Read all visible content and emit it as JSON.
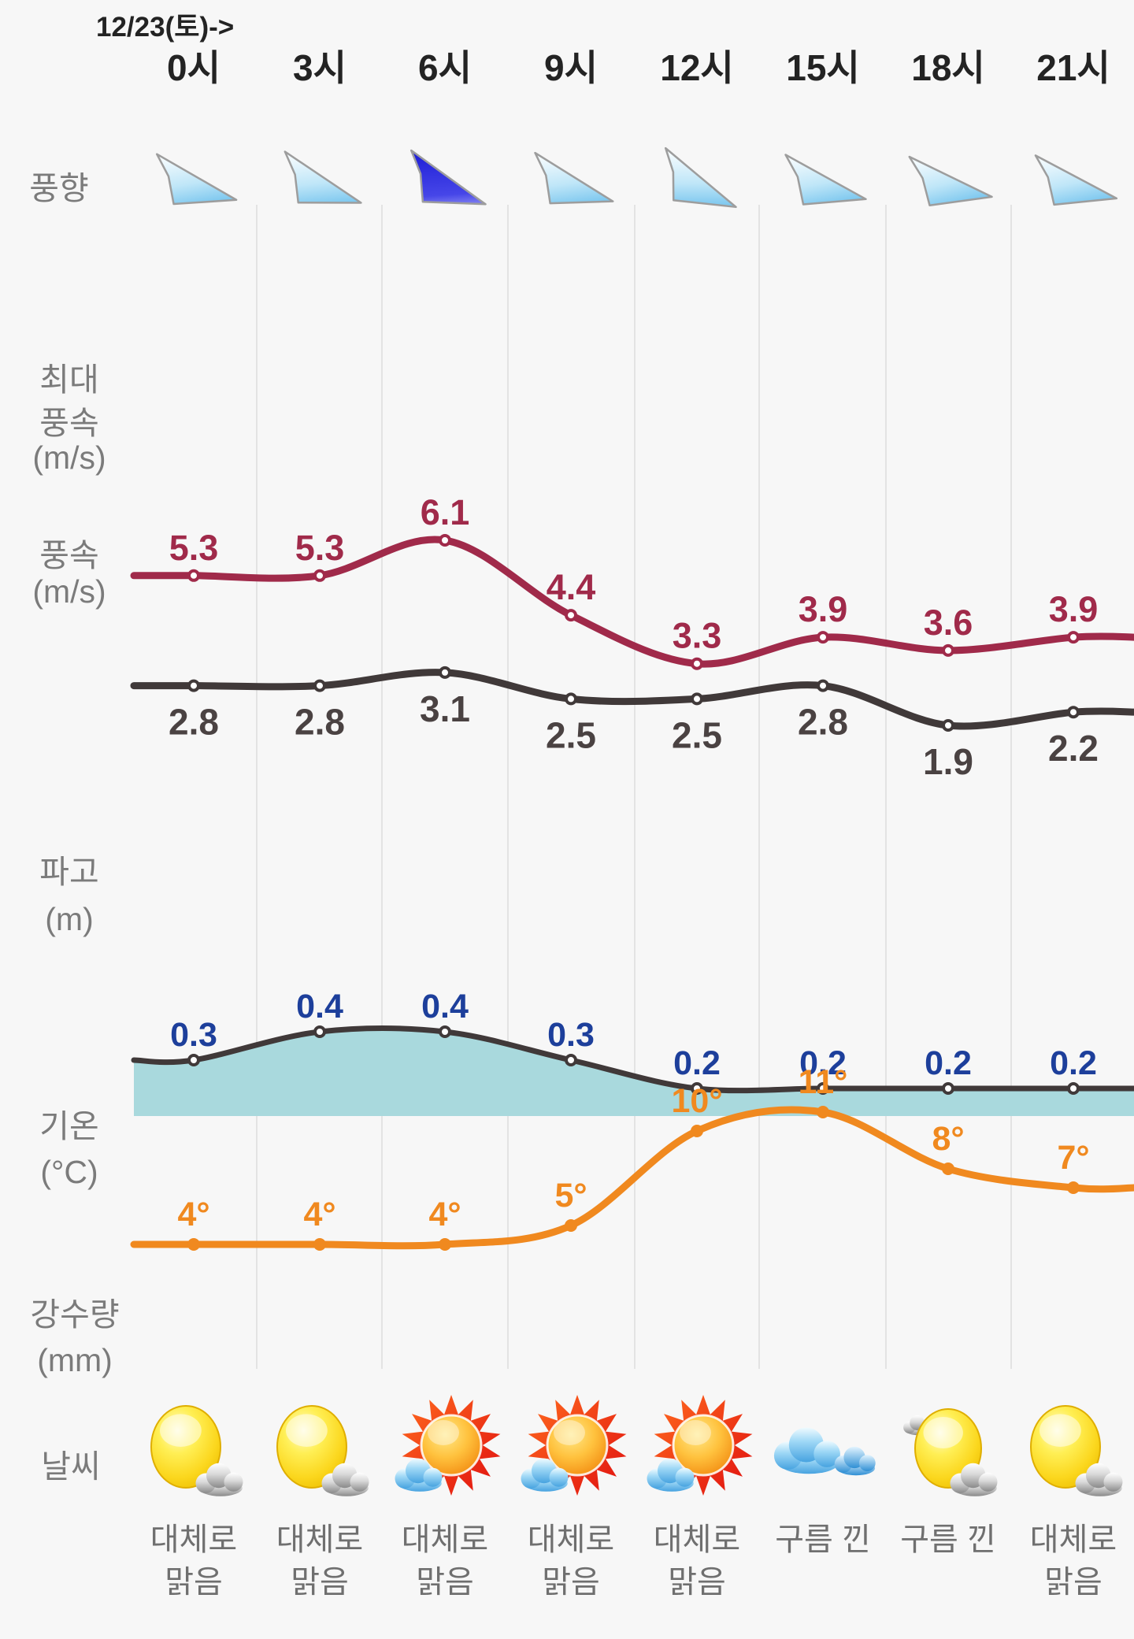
{
  "header": {
    "date_label": "12/23(토)->",
    "times": [
      "0시",
      "3시",
      "6시",
      "9시",
      "12시",
      "15시",
      "18시",
      "21시"
    ]
  },
  "rows": {
    "wind_direction_label": "풍향",
    "max_wind_label_lines": [
      "최대",
      "풍속",
      "(m/s)"
    ],
    "wind_label_lines": [
      "풍속",
      "(m/s)"
    ],
    "wave_label_lines": [
      "파고",
      "(m)"
    ],
    "temp_label_lines": [
      "기온",
      "(°C)"
    ],
    "precip_label_lines": [
      "강수량",
      "(mm)"
    ],
    "weather_label": "날씨"
  },
  "wind_direction": {
    "arrows": [
      {
        "rot": 16,
        "strength": "normal"
      },
      {
        "rot": 20,
        "strength": "normal"
      },
      {
        "rot": 22,
        "strength": "strong"
      },
      {
        "rot": 18,
        "strength": "normal"
      },
      {
        "rot": 26,
        "strength": "normal"
      },
      {
        "rot": 15,
        "strength": "normal"
      },
      {
        "rot": 12,
        "strength": "normal"
      },
      {
        "rot": 14,
        "strength": "normal"
      }
    ]
  },
  "chart_data": [
    {
      "type": "line",
      "name": "max_wind_speed",
      "title": "최대 풍속 (m/s)",
      "categories": [
        "0시",
        "3시",
        "6시",
        "9시",
        "12시",
        "15시",
        "18시",
        "21시"
      ],
      "values": [
        5.3,
        5.3,
        6.1,
        4.4,
        3.3,
        3.9,
        3.6,
        3.9
      ],
      "color": "#a02a4a",
      "label_color": "#a02a4a",
      "marker": "open-circle"
    },
    {
      "type": "line",
      "name": "wind_speed",
      "title": "풍속 (m/s)",
      "categories": [
        "0시",
        "3시",
        "6시",
        "9시",
        "12시",
        "15시",
        "18시",
        "21시"
      ],
      "values": [
        2.8,
        2.8,
        3.1,
        2.5,
        2.5,
        2.8,
        1.9,
        2.2
      ],
      "color": "#403939",
      "label_color": "#4a4242",
      "marker": "open-circle"
    },
    {
      "type": "area",
      "name": "wave_height",
      "title": "파고 (m)",
      "categories": [
        "0시",
        "3시",
        "6시",
        "9시",
        "12시",
        "15시",
        "18시",
        "21시"
      ],
      "values": [
        0.3,
        0.4,
        0.4,
        0.3,
        0.2,
        0.2,
        0.2,
        0.2
      ],
      "color": "#403939",
      "fill": "#a9d9dd",
      "label_color": "#1d3f9b",
      "marker": "open-circle"
    },
    {
      "type": "line",
      "name": "temperature",
      "title": "기온 (°C)",
      "categories": [
        "0시",
        "3시",
        "6시",
        "9시",
        "12시",
        "15시",
        "18시",
        "21시"
      ],
      "values": [
        4,
        4,
        4,
        5,
        10,
        11,
        8,
        7
      ],
      "labels": [
        "4°",
        "4°",
        "4°",
        "5°",
        "10°",
        "11°",
        "8°",
        "7°"
      ],
      "color": "#f0891f",
      "label_color": "#f0891f",
      "marker": "filled-circle"
    }
  ],
  "weather": {
    "items": [
      {
        "icon": "sun-cloud",
        "label_lines": [
          "대체로",
          "맑음"
        ]
      },
      {
        "icon": "sun-cloud",
        "label_lines": [
          "대체로",
          "맑음"
        ]
      },
      {
        "icon": "sun-rays-cloud",
        "label_lines": [
          "대체로",
          "맑음"
        ]
      },
      {
        "icon": "sun-rays-cloud",
        "label_lines": [
          "대체로",
          "맑음"
        ]
      },
      {
        "icon": "sun-rays-cloud",
        "label_lines": [
          "대체로",
          "맑음"
        ]
      },
      {
        "icon": "clouds",
        "label_lines": [
          "구름 낀"
        ]
      },
      {
        "icon": "sun-two-clouds",
        "label_lines": [
          "구름 낀"
        ]
      },
      {
        "icon": "sun-cloud",
        "label_lines": [
          "대체로",
          "맑음"
        ]
      }
    ]
  },
  "colors": {
    "background": "#f7f7f7",
    "grid": "#e3e3e3",
    "header_text": "#232323",
    "row_label": "#7b7b7b",
    "weather_text": "#6f6f6f",
    "max_wind": "#a02a4a",
    "wind": "#403939",
    "wave_fill": "#a9d9dd",
    "wave_label": "#1d3f9b",
    "temp": "#f0891f",
    "arrow_blue": "#3fabe6",
    "arrow_strong": "#2323dd"
  }
}
